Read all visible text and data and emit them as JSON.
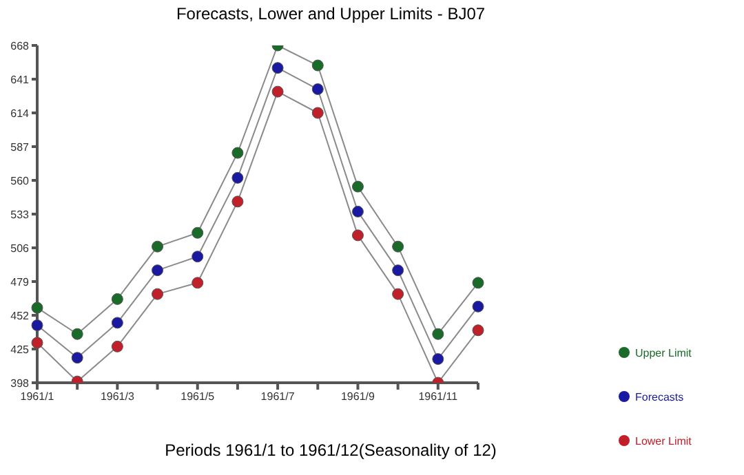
{
  "chart_data": {
    "type": "line",
    "title": "Forecasts, Lower and Upper Limits - BJ07",
    "xlabel": "Periods 1961/1 to 1961/12(Seasonality of 12)",
    "categories": [
      "1961/1",
      null,
      "1961/3",
      null,
      "1961/5",
      null,
      "1961/7",
      null,
      "1961/9",
      null,
      "1961/11",
      null
    ],
    "series": [
      {
        "name": "Upper Limit",
        "color": "#1a6b2a",
        "values": [
          458,
          437,
          465,
          507,
          518,
          582,
          668,
          652,
          555,
          507,
          437,
          478
        ]
      },
      {
        "name": "Forecasts",
        "color": "#1a1aa0",
        "values": [
          444,
          418,
          446,
          488,
          499,
          562,
          650,
          633,
          535,
          488,
          417,
          459
        ]
      },
      {
        "name": "Lower Limit",
        "color": "#c0202a",
        "values": [
          430,
          399,
          427,
          469,
          478,
          543,
          631,
          614,
          516,
          469,
          398,
          440
        ]
      }
    ],
    "ylim": [
      398,
      668
    ],
    "yticks": [
      398,
      425,
      452,
      479,
      506,
      533,
      560,
      587,
      614,
      641,
      668
    ],
    "grid": false,
    "legend": "right",
    "marker": "circle",
    "line_style": "solid"
  }
}
